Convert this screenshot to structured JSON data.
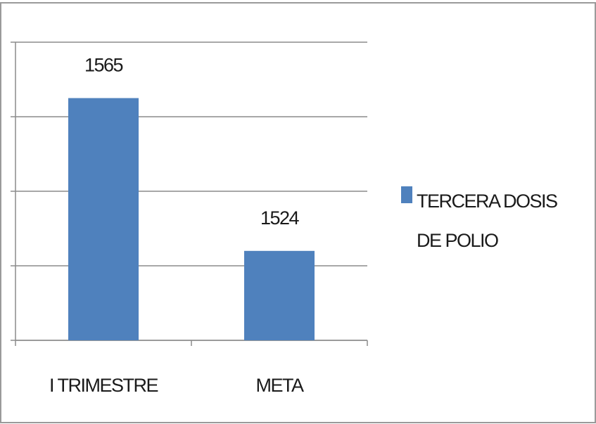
{
  "chart_data": {
    "type": "bar",
    "categories": [
      "I TRIMESTRE",
      "META"
    ],
    "series": [
      {
        "name": "TERCERA DOSIS DE POLIO",
        "color": "#4f81bd",
        "values": [
          1565,
          1524
        ]
      }
    ],
    "ylim": [
      1500,
      1580
    ],
    "yticks": [
      1500,
      1520,
      1540,
      1560,
      1580
    ],
    "grid": true,
    "legend": "right"
  }
}
